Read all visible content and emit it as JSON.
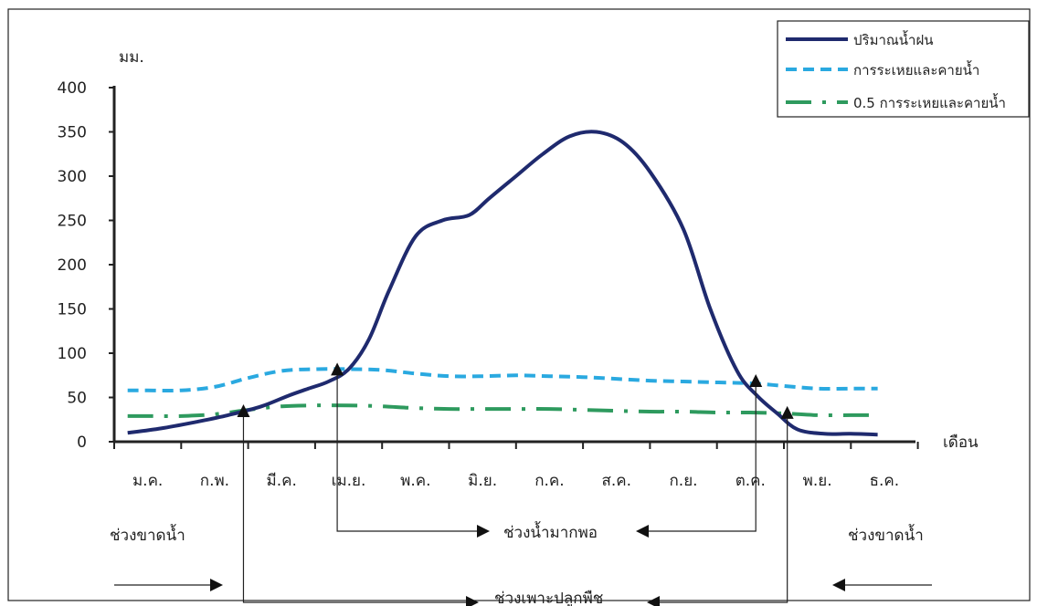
{
  "chart_data": {
    "type": "line",
    "ylabel": "มม.",
    "xlabel": "เดือน",
    "ylim": [
      0,
      400
    ],
    "y_ticks": [
      0,
      50,
      100,
      150,
      200,
      250,
      300,
      350,
      400
    ],
    "categories": [
      "ม.ค.",
      "ก.พ.",
      "มี.ค.",
      "เม.ย.",
      "พ.ค.",
      "มิ.ย.",
      "ก.ค.",
      "ส.ค.",
      "ก.ย.",
      "ต.ค.",
      "พ.ย.",
      "ธ.ค."
    ],
    "legend_position": "top-right",
    "grid": false,
    "series": [
      {
        "name": "ปริมาณน้ำฝน",
        "color": "#1f2a6e",
        "style": "solid",
        "x": [
          0.2,
          0.7,
          1.2,
          1.7,
          2.2,
          2.6,
          2.9,
          3.2,
          3.5,
          3.8,
          4.1,
          4.5,
          4.9,
          5.3,
          5.6,
          6.0,
          6.4,
          6.8,
          7.2,
          7.6,
          8.0,
          8.5,
          8.9,
          9.3,
          9.6,
          9.9,
          10.2,
          10.6,
          11.0,
          11.4
        ],
        "values": [
          10,
          15,
          22,
          30,
          40,
          52,
          60,
          68,
          82,
          115,
          170,
          232,
          250,
          256,
          275,
          300,
          325,
          345,
          350,
          338,
          305,
          240,
          150,
          80,
          52,
          32,
          14,
          9,
          9,
          8
        ]
      },
      {
        "name": "การระเหยและคายน้ำ",
        "color": "#2aa9e0",
        "style": "dashed",
        "x": [
          0.2,
          0.5,
          1.0,
          1.5,
          2.0,
          2.5,
          3.0,
          3.5,
          4.0,
          4.5,
          5.0,
          5.5,
          6.0,
          6.5,
          7.0,
          7.5,
          8.0,
          8.5,
          9.0,
          9.5,
          10.0,
          10.5,
          11.0,
          11.4
        ],
        "values": [
          58,
          58,
          58,
          62,
          72,
          80,
          82,
          82,
          81,
          77,
          74,
          74,
          75,
          74,
          73,
          71,
          69,
          68,
          67,
          66,
          63,
          60,
          60,
          60
        ]
      },
      {
        "name": "0.5 การระเหยและคายน้ำ",
        "color": "#2e9a5e",
        "style": "dash-dot",
        "x": [
          0.2,
          0.5,
          1.0,
          1.5,
          2.0,
          2.5,
          3.0,
          3.5,
          4.0,
          4.5,
          5.0,
          5.5,
          6.0,
          6.5,
          7.0,
          7.5,
          8.0,
          8.5,
          9.0,
          9.5,
          10.0,
          10.5,
          11.0,
          11.4
        ],
        "values": [
          29,
          29,
          29,
          31,
          36,
          40,
          41,
          41,
          40,
          38,
          37,
          37,
          37,
          37,
          36,
          35,
          34,
          34,
          33,
          33,
          32,
          30,
          30,
          30
        ]
      }
    ],
    "markers": [
      {
        "x": 1.93,
        "value": 33
      },
      {
        "x": 3.33,
        "value": 80
      },
      {
        "x": 9.58,
        "value": 67
      },
      {
        "x": 10.05,
        "value": 31
      }
    ],
    "annotations": {
      "shortage_left": "ช่วงขาดน้ำ",
      "surplus": "ช่วงน้ำมากพอ",
      "growing": "ช่วงเพาะปลูกพืช",
      "shortage_right": "ช่วงขาดน้ำ"
    }
  }
}
